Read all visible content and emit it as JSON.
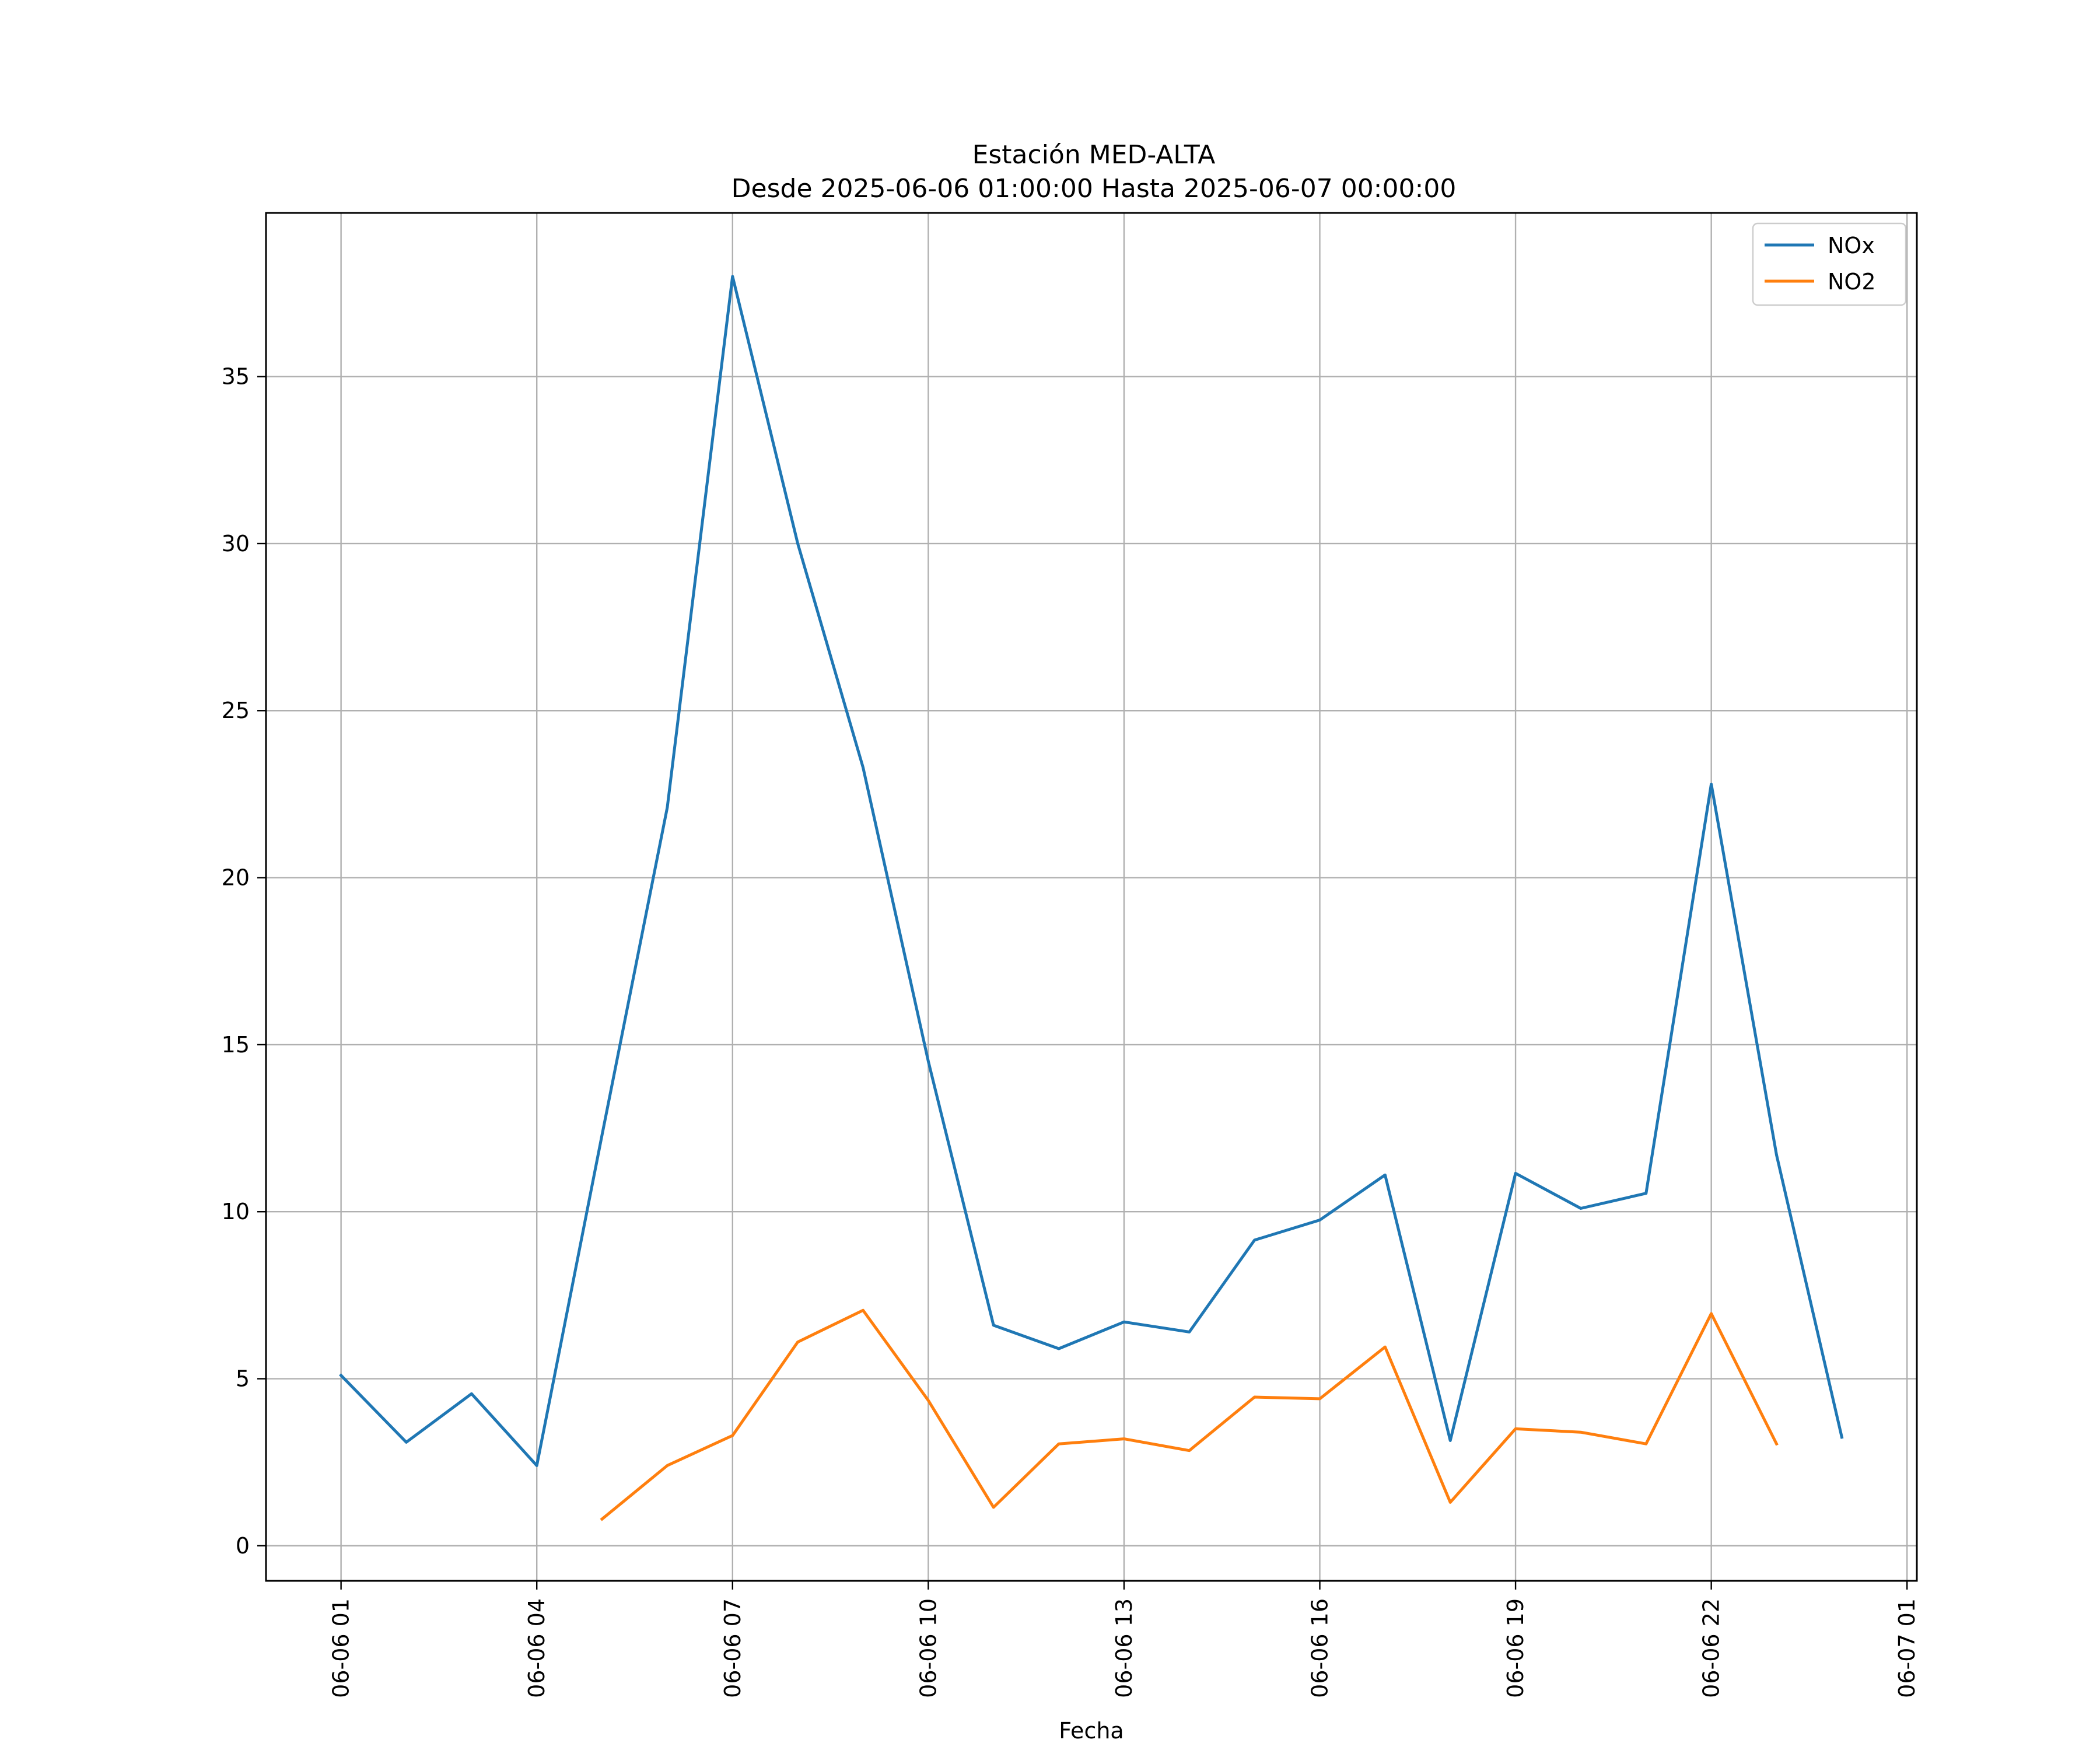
{
  "chart_data": {
    "type": "line",
    "title": "Estación MED-ALTA",
    "subtitle": "Desde 2025-06-06 01:00:00 Hasta 2025-06-07 00:00:00",
    "xlabel": "Fecha",
    "ylabel": "",
    "x_ticks": [
      "06-06 01",
      "06-06 04",
      "06-06 07",
      "06-06 10",
      "06-06 13",
      "06-06 16",
      "06-06 19",
      "06-06 22",
      "06-07 01"
    ],
    "y_ticks": [
      0,
      5,
      10,
      15,
      20,
      25,
      30,
      35
    ],
    "xlim": [
      "2025-06-05 23:51",
      "2025-06-07 01:09"
    ],
    "ylim": [
      -1.05,
      39.9
    ],
    "grid": true,
    "legend": "top-right",
    "x": [
      "2025-06-06 01:00",
      "2025-06-06 02:00",
      "2025-06-06 03:00",
      "2025-06-06 04:00",
      "2025-06-06 05:00",
      "2025-06-06 06:00",
      "2025-06-06 07:00",
      "2025-06-06 08:00",
      "2025-06-06 09:00",
      "2025-06-06 10:00",
      "2025-06-06 11:00",
      "2025-06-06 12:00",
      "2025-06-06 13:00",
      "2025-06-06 14:00",
      "2025-06-06 15:00",
      "2025-06-06 16:00",
      "2025-06-06 17:00",
      "2025-06-06 18:00",
      "2025-06-06 19:00",
      "2025-06-06 20:00",
      "2025-06-06 21:00",
      "2025-06-06 22:00",
      "2025-06-06 23:00",
      "2025-06-07 00:00"
    ],
    "series": [
      {
        "name": "NOx",
        "color": "#1f77b4",
        "values": [
          5.1,
          3.1,
          4.55,
          2.4,
          12.3,
          22.1,
          38.0,
          30.0,
          23.3,
          14.5,
          6.6,
          5.9,
          6.7,
          6.4,
          9.15,
          9.75,
          11.1,
          3.15,
          11.15,
          10.1,
          10.55,
          22.8,
          11.7,
          3.25
        ]
      },
      {
        "name": "NO2",
        "color": "#ff7f0e",
        "values": [
          null,
          null,
          null,
          null,
          0.8,
          2.4,
          3.3,
          6.1,
          7.05,
          4.35,
          1.15,
          3.05,
          3.2,
          2.85,
          4.45,
          4.4,
          5.95,
          1.3,
          3.5,
          3.4,
          3.05,
          6.95,
          3.05,
          null
        ]
      }
    ]
  }
}
